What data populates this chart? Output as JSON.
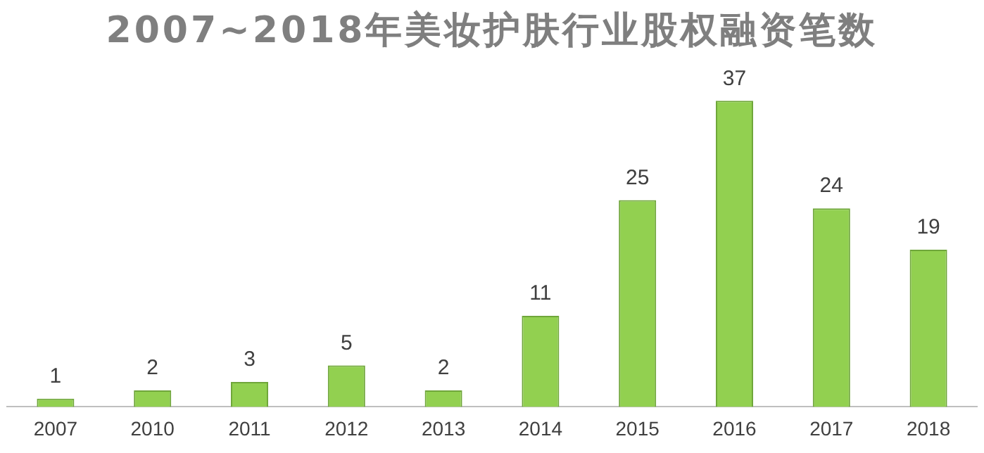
{
  "chart_data": {
    "type": "bar",
    "title": "2007~2018年美妆护肤行业股权融资笔数",
    "categories": [
      "2007",
      "2010",
      "2011",
      "2012",
      "2013",
      "2014",
      "2015",
      "2016",
      "2017",
      "2018"
    ],
    "values": [
      1,
      2,
      3,
      5,
      2,
      11,
      25,
      37,
      24,
      19
    ],
    "color": "#92d050",
    "data_labels": true,
    "grid": false,
    "legend": false,
    "tick_labels": "x"
  }
}
